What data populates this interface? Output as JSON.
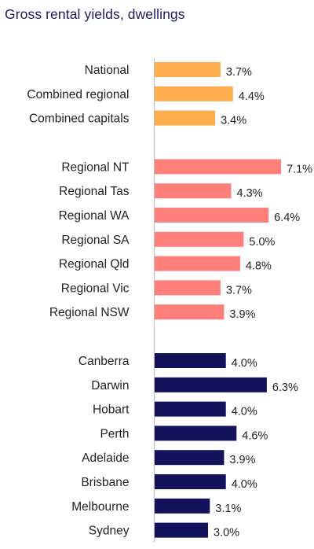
{
  "chart_data": {
    "type": "bar",
    "orientation": "horizontal",
    "title": "Gross rental yields, dwellings",
    "value_format": "percent",
    "groups": [
      {
        "color": "#FFAC4D",
        "categories": [
          "National",
          "Combined regional",
          "Combined capitals"
        ],
        "values": [
          3.7,
          4.4,
          3.4
        ],
        "labels": [
          "3.7%",
          "4.4%",
          "3.4%"
        ]
      },
      {
        "color": "#FF7F7A",
        "categories": [
          "Regional NT",
          "Regional Tas",
          "Regional WA",
          "Regional SA",
          "Regional Qld",
          "Regional Vic",
          "Regional NSW"
        ],
        "values": [
          7.1,
          4.3,
          6.4,
          5.0,
          4.8,
          3.7,
          3.9
        ],
        "labels": [
          "7.1%",
          "4.3%",
          "6.4%",
          "5.0%",
          "4.8%",
          "3.7%",
          "3.9%"
        ]
      },
      {
        "color": "#13135C",
        "categories": [
          "Canberra",
          "Darwin",
          "Hobart",
          "Perth",
          "Adelaide",
          "Brisbane",
          "Melbourne",
          "Sydney"
        ],
        "values": [
          4.0,
          6.3,
          4.0,
          4.6,
          3.9,
          4.0,
          3.1,
          3.0
        ],
        "labels": [
          "4.0%",
          "6.3%",
          "4.0%",
          "4.6%",
          "3.9%",
          "4.0%",
          "3.1%",
          "3.0%"
        ]
      }
    ],
    "xlim": [
      0,
      7.1
    ],
    "axis_color": "#BDBDBD",
    "grid": false,
    "legend": "none"
  }
}
